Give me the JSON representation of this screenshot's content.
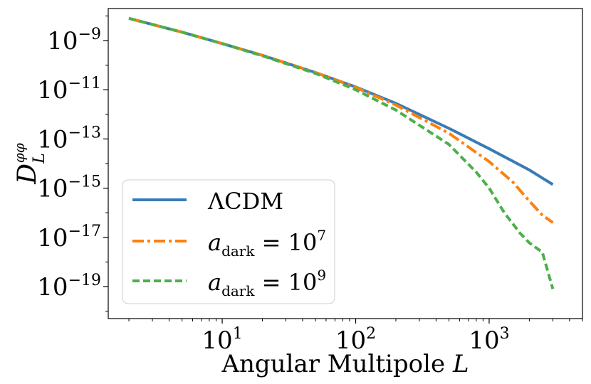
{
  "chart_data": {
    "type": "line",
    "xlabel": "Angular Multipole L",
    "ylabel": "D_L^{φφ}",
    "xscale": "log",
    "yscale": "log",
    "xlim": [
      1.4,
      5000
    ],
    "ylim": [
      5e-21,
      2e-08
    ],
    "grid": false,
    "legend_position": "lower-left",
    "x_ticks": [
      {
        "value": 10,
        "base": "10",
        "exp": "1"
      },
      {
        "value": 100,
        "base": "10",
        "exp": "2"
      },
      {
        "value": 1000,
        "base": "10",
        "exp": "3"
      }
    ],
    "y_ticks": [
      {
        "value": 1e-09,
        "base": "10",
        "exp": "−9"
      },
      {
        "value": 1e-11,
        "base": "10",
        "exp": "−11"
      },
      {
        "value": 1e-13,
        "base": "10",
        "exp": "−13"
      },
      {
        "value": 1e-15,
        "base": "10",
        "exp": "−15"
      },
      {
        "value": 1e-17,
        "base": "10",
        "exp": "−17"
      },
      {
        "value": 1e-19,
        "base": "10",
        "exp": "−19"
      }
    ],
    "series": [
      {
        "name": "ΛCDM",
        "color": "#3a7bb6",
        "style": "solid",
        "x": [
          2,
          5,
          10,
          20,
          50,
          100,
          200,
          500,
          1000,
          2000,
          3000
        ],
        "y": [
          8e-09,
          2.2e-09,
          7.5e-10,
          2.5e-10,
          5e-11,
          1.3e-11,
          2.8e-12,
          2.7e-13,
          4e-14,
          5.5e-15,
          1.4e-15
        ]
      },
      {
        "name": "a_dark = 10^7",
        "color": "#ff7f0e",
        "style": "dashdot",
        "x": [
          2,
          5,
          10,
          20,
          50,
          100,
          200,
          500,
          1000,
          1500,
          2000,
          2500,
          3000
        ],
        "y": [
          8e-09,
          2.2e-09,
          7.5e-10,
          2.5e-10,
          5e-11,
          1.25e-11,
          2.4e-12,
          1.7e-13,
          1.2e-14,
          1.8e-15,
          3e-16,
          8e-17,
          4e-17
        ]
      },
      {
        "name": "a_dark = 10^9",
        "color": "#4daf4a",
        "style": "dashed",
        "x": [
          2,
          5,
          10,
          20,
          50,
          100,
          200,
          500,
          800,
          1000,
          1300,
          1700,
          2000,
          2500,
          3000
        ],
        "y": [
          8e-09,
          2.2e-09,
          7.5e-10,
          2.4e-10,
          4.6e-11,
          1e-11,
          1.5e-12,
          6e-14,
          4.5e-15,
          1e-15,
          1e-16,
          1.5e-17,
          6e-18,
          2.5e-18,
          8e-20
        ]
      }
    ]
  },
  "legend": {
    "items": [
      {
        "prefix": "ΛCDM",
        "sub": "",
        "rest": "",
        "sup": ""
      },
      {
        "prefix": "a",
        "sub": "dark",
        "rest": " = 10",
        "sup": "7"
      },
      {
        "prefix": "a",
        "sub": "dark",
        "rest": " = 10",
        "sup": "9"
      }
    ]
  },
  "labels": {
    "xlabel_main": "Angular Multipole ",
    "xlabel_var": "L",
    "ylabel_main": "D",
    "ylabel_sub": "L",
    "ylabel_sup": "φφ"
  }
}
